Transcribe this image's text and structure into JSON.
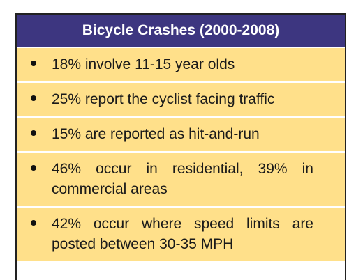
{
  "header": {
    "title": "Bicycle Crashes (2000-2008)"
  },
  "items": [
    "18% involve 11-15 year olds",
    "25% report the cyclist facing traffic",
    "15% are reported as hit-and-run",
    "46% occur in residential, 39% in commercial areas",
    "42% occur where speed limits are posted between 30-35 MPH"
  ]
}
